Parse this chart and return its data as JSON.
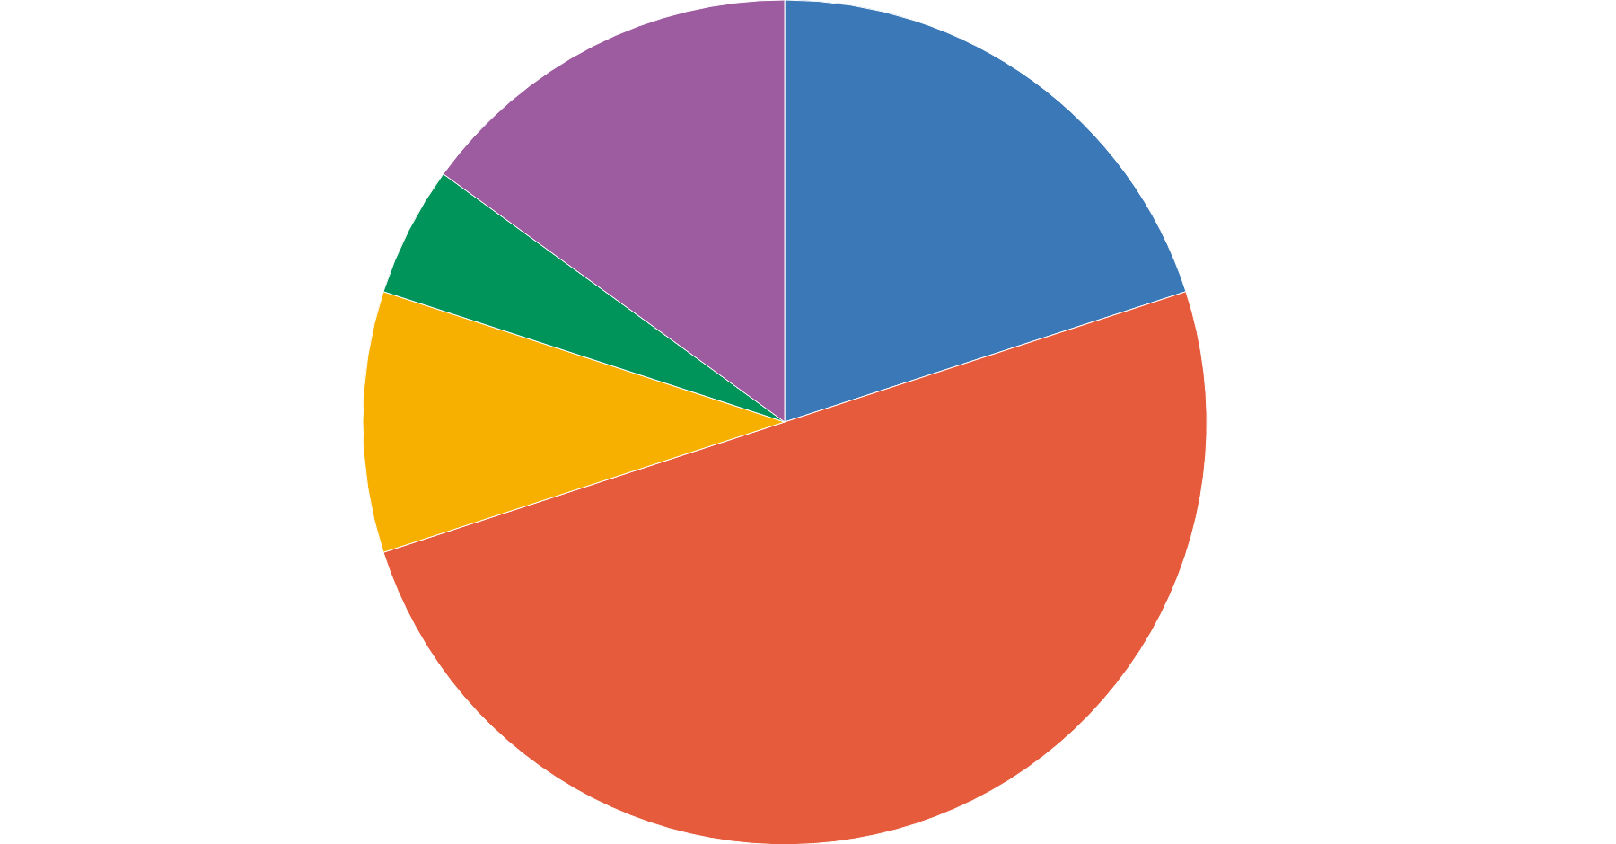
{
  "chart_data": {
    "type": "pie",
    "categories": [
      null,
      null,
      null,
      null,
      null
    ],
    "values": [
      20,
      50,
      10,
      5,
      15
    ],
    "colors": [
      "#3a78b8",
      "#e55b3c",
      "#f8b000",
      "#00935a",
      "#9c5c9f"
    ]
  }
}
